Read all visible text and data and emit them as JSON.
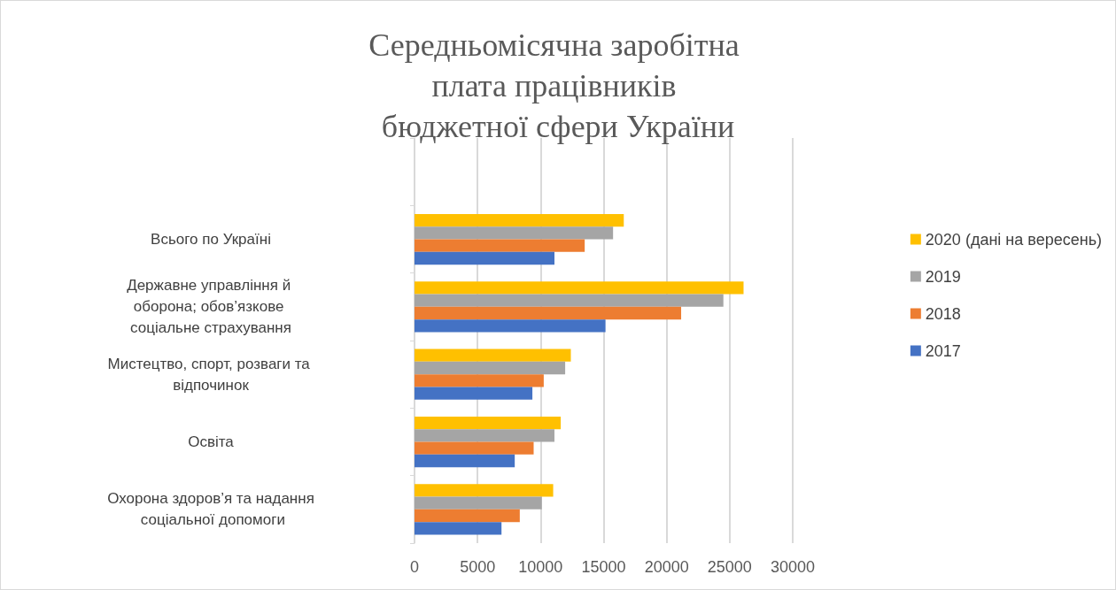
{
  "chart_data": {
    "type": "bar",
    "orientation": "horizontal",
    "title": "Середньомісячна заробітна плата працівників бюджетної сфери України",
    "categories": [
      null,
      "Всього по Україні",
      "Державне управління й оборона; обов’язкове соціальне страхування",
      "Мистецтво, спорт, розваги та відпочинок",
      "Освіта",
      "Охорона здоров’я та надання соціальної допомоги"
    ],
    "series": [
      {
        "name": "2020 (дані на вересень)",
        "color": "#ffc000",
        "values": [
          null,
          16600,
          26100,
          12400,
          11600,
          11000
        ]
      },
      {
        "name": "2019",
        "color": "#a5a5a5",
        "values": [
          null,
          15750,
          24500,
          11950,
          11100,
          10100
        ]
      },
      {
        "name": "2018",
        "color": "#ed7d31",
        "values": [
          null,
          13500,
          21150,
          10250,
          9450,
          8350
        ]
      },
      {
        "name": "2017",
        "color": "#4472c4",
        "values": [
          null,
          11100,
          15150,
          9350,
          7950,
          6900
        ]
      }
    ],
    "xlim": [
      0,
      30000
    ],
    "xticks": [
      0,
      5000,
      10000,
      15000,
      20000,
      25000,
      30000
    ],
    "grid": "x",
    "legend": "right"
  }
}
